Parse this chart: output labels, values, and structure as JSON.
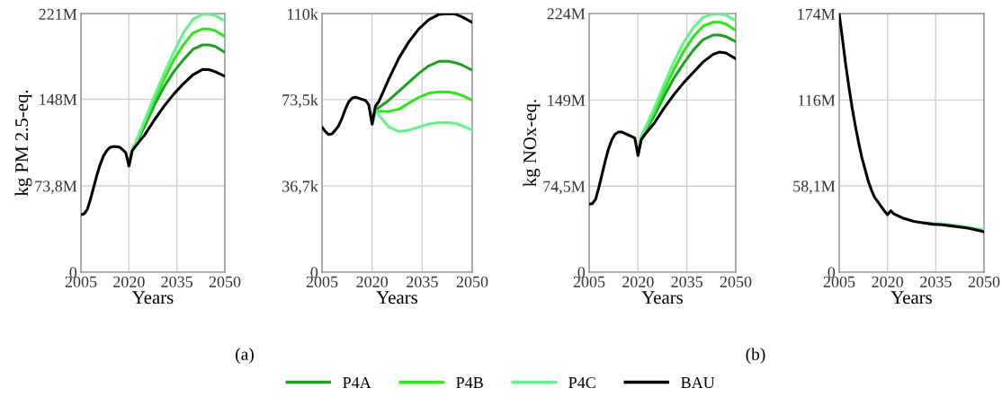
{
  "chart_data": [
    {
      "type": "line",
      "ylabel": "kg PM 2.5-eq.",
      "xlabel": "Years",
      "grid": true,
      "legend": "bottom",
      "annotations": [
        "(a)"
      ],
      "x": [
        2005,
        2006,
        2007,
        2008,
        2009,
        2010,
        2011,
        2012,
        2013,
        2014,
        2015,
        2016,
        2017,
        2018,
        2019,
        2020,
        2021,
        2022,
        2025,
        2028,
        2031,
        2034,
        2037,
        2040,
        2043,
        2045,
        2047,
        2050
      ],
      "xlim": [
        2005,
        2050
      ],
      "xticks": [
        2005,
        2020,
        2035,
        2050
      ],
      "ylim": [
        0,
        221.4
      ],
      "yticks": [
        0,
        {
          "value": 73.8,
          "label": "73,8M"
        },
        {
          "value": 148,
          "label": "148M"
        },
        {
          "value": 221,
          "label": "221M"
        }
      ],
      "series": [
        {
          "name": "P4A",
          "color": "#1fa01f",
          "values": [
            null,
            null,
            null,
            null,
            null,
            null,
            null,
            null,
            null,
            null,
            null,
            null,
            null,
            null,
            null,
            90.9,
            104.2,
            108.8,
            125.4,
            143.3,
            158.7,
            171.5,
            181.7,
            190.7,
            194.5,
            194.5,
            193.2,
            188.1
          ]
        },
        {
          "name": "P4B",
          "color": "#2ee61a",
          "values": [
            null,
            null,
            null,
            null,
            null,
            null,
            null,
            null,
            null,
            null,
            null,
            null,
            null,
            null,
            null,
            90.9,
            104.4,
            109.5,
            128.0,
            147.2,
            165.1,
            181.7,
            194.5,
            204.8,
            208.1,
            208.1,
            206.6,
            201.7
          ]
        },
        {
          "name": "P4C",
          "color": "#66f28a",
          "values": [
            null,
            null,
            null,
            null,
            null,
            null,
            null,
            null,
            null,
            null,
            null,
            null,
            null,
            null,
            null,
            90.9,
            104.9,
            110.6,
            130.5,
            151.0,
            170.2,
            188.1,
            204.8,
            216.3,
            220.9,
            220.9,
            219.6,
            215.0
          ]
        },
        {
          "name": "BAU",
          "color": "#000000",
          "values": [
            49.1,
            49.9,
            53.7,
            62.7,
            73.0,
            83.2,
            92.1,
            99.1,
            103.7,
            106.7,
            107.5,
            107.5,
            107.0,
            104.9,
            102.4,
            90.9,
            103.7,
            107.5,
            117.7,
            130.5,
            142.1,
            152.3,
            161.2,
            168.9,
            173.5,
            173.3,
            171.5,
            167.6
          ]
        }
      ]
    },
    {
      "type": "line",
      "xlabel": "Years",
      "grid": true,
      "x": [
        2005,
        2006,
        2007,
        2008,
        2009,
        2010,
        2011,
        2012,
        2013,
        2014,
        2015,
        2016,
        2017,
        2018,
        2019,
        2020,
        2021,
        2022,
        2025,
        2028,
        2031,
        2034,
        2037,
        2040,
        2043,
        2045,
        2047,
        2050
      ],
      "xlim": [
        2005,
        2050
      ],
      "xticks": [
        2005,
        2020,
        2035,
        2050
      ],
      "ylim": [
        0,
        110.2
      ],
      "yticks": [
        0,
        {
          "value": 36.7,
          "label": "36,7k"
        },
        {
          "value": 73.5,
          "label": "73,5k"
        },
        {
          "value": 110,
          "label": "110k"
        }
      ],
      "series": [
        {
          "color": "#1fa01f",
          "values": [
            null,
            null,
            null,
            null,
            null,
            null,
            null,
            null,
            null,
            null,
            null,
            null,
            null,
            null,
            null,
            63.1,
            69.0,
            70.1,
            73.2,
            77.1,
            80.9,
            84.7,
            87.9,
            89.8,
            89.8,
            89.2,
            88.2,
            86.0
          ]
        },
        {
          "color": "#2ee61a",
          "values": [
            null,
            null,
            null,
            null,
            null,
            null,
            null,
            null,
            null,
            null,
            null,
            null,
            null,
            null,
            null,
            63.1,
            69.0,
            68.5,
            68.5,
            69.4,
            72.0,
            74.5,
            76.2,
            76.8,
            76.7,
            76.2,
            75.2,
            73.2
          ]
        },
        {
          "color": "#66f28a",
          "values": [
            null,
            null,
            null,
            null,
            null,
            null,
            null,
            null,
            null,
            null,
            null,
            null,
            null,
            null,
            null,
            63.1,
            69.0,
            66.9,
            61.8,
            59.9,
            60.5,
            61.8,
            63.1,
            63.7,
            63.7,
            63.3,
            62.4,
            60.5
          ]
        },
        {
          "color": "#000000",
          "values": [
            61.8,
            59.9,
            58.6,
            58.9,
            60.5,
            62.4,
            65.6,
            69.4,
            72.6,
            74.1,
            74.5,
            74.1,
            73.6,
            73.2,
            71.3,
            63.1,
            70.7,
            72.6,
            82.2,
            91.1,
            98.1,
            103.6,
            107.6,
            109.8,
            110.1,
            109.9,
            108.7,
            106.4
          ]
        }
      ]
    },
    {
      "type": "line",
      "ylabel": "kg NOx-eq.",
      "xlabel": "Years",
      "grid": true,
      "annotations": [
        "(b)"
      ],
      "x": [
        2005,
        2006,
        2007,
        2008,
        2009,
        2010,
        2011,
        2012,
        2013,
        2014,
        2015,
        2016,
        2017,
        2018,
        2019,
        2020,
        2021,
        2022,
        2025,
        2028,
        2031,
        2034,
        2037,
        2040,
        2043,
        2045,
        2047,
        2050
      ],
      "xlim": [
        2005,
        2050
      ],
      "xticks": [
        2005,
        2020,
        2035,
        2050
      ],
      "ylim": [
        0,
        224
      ],
      "yticks": [
        0,
        {
          "value": 74.5,
          "label": "74,5M"
        },
        {
          "value": 149,
          "label": "149M"
        },
        {
          "value": 224,
          "label": "224M"
        }
      ],
      "series": [
        {
          "color": "#1fa01f",
          "values": [
            null,
            null,
            null,
            null,
            null,
            null,
            null,
            null,
            null,
            null,
            null,
            null,
            null,
            null,
            null,
            101.2,
            116.2,
            120.9,
            135.6,
            152.4,
            167.9,
            180.8,
            192.4,
            201.4,
            205.3,
            205.3,
            204.0,
            199.6
          ]
        },
        {
          "color": "#2ee61a",
          "values": [
            null,
            null,
            null,
            null,
            null,
            null,
            null,
            null,
            null,
            null,
            null,
            null,
            null,
            null,
            null,
            101.2,
            116.7,
            121.9,
            138.2,
            157.5,
            175.6,
            191.1,
            204.0,
            213.1,
            216.4,
            216.4,
            214.9,
            209.2
          ]
        },
        {
          "color": "#66f28a",
          "values": [
            null,
            null,
            null,
            null,
            null,
            null,
            null,
            null,
            null,
            null,
            null,
            null,
            null,
            null,
            null,
            101.2,
            117.5,
            124.0,
            142.0,
            162.7,
            182.1,
            198.9,
            211.8,
            220.8,
            223.5,
            223.5,
            222.6,
            217.5
          ]
        },
        {
          "color": "#000000",
          "values": [
            58.9,
            59.4,
            63.3,
            73.6,
            85.2,
            96.9,
            107.2,
            114.9,
            119.6,
            121.4,
            121.4,
            120.1,
            118.8,
            117.5,
            116.2,
            101.2,
            114.9,
            118.8,
            129.1,
            142.0,
            153.7,
            164.0,
            173.0,
            182.1,
            188.5,
            190.6,
            189.8,
            184.7
          ]
        }
      ]
    },
    {
      "type": "line",
      "xlabel": "Years",
      "grid": true,
      "x": [
        2005,
        2006,
        2007,
        2008,
        2009,
        2010,
        2011,
        2012,
        2013,
        2014,
        2015,
        2016,
        2017,
        2018,
        2019,
        2020,
        2021,
        2022,
        2025,
        2028,
        2031,
        2034,
        2037,
        2040,
        2043,
        2045,
        2047,
        2050
      ],
      "xlim": [
        2005,
        2050
      ],
      "xticks": [
        2005,
        2020,
        2035,
        2050
      ],
      "ylim": [
        0,
        174.3
      ],
      "yticks": [
        0,
        {
          "value": 58.1,
          "label": "58,1M"
        },
        {
          "value": 116,
          "label": "116M"
        },
        {
          "value": 174,
          "label": "174M"
        }
      ],
      "series": [
        {
          "color": "#66f28a",
          "values": [
            null,
            null,
            null,
            null,
            null,
            null,
            null,
            null,
            null,
            null,
            null,
            null,
            null,
            null,
            null,
            null,
            null,
            null,
            null,
            null,
            33.3,
            32.8,
            32.5,
            31.8,
            31.0,
            30.3,
            29.6,
            28.6
          ]
        },
        {
          "color": "#000000",
          "values": [
            174,
            157.4,
            140.2,
            125.1,
            111.0,
            98.8,
            87.7,
            77.6,
            69.6,
            61.5,
            55.5,
            50.4,
            47.4,
            44.4,
            41.4,
            38.7,
            41.4,
            39.3,
            36.3,
            34.3,
            33.3,
            32.3,
            31.9,
            31.1,
            30.3,
            29.7,
            28.8,
            27.2
          ]
        }
      ]
    }
  ]
}
